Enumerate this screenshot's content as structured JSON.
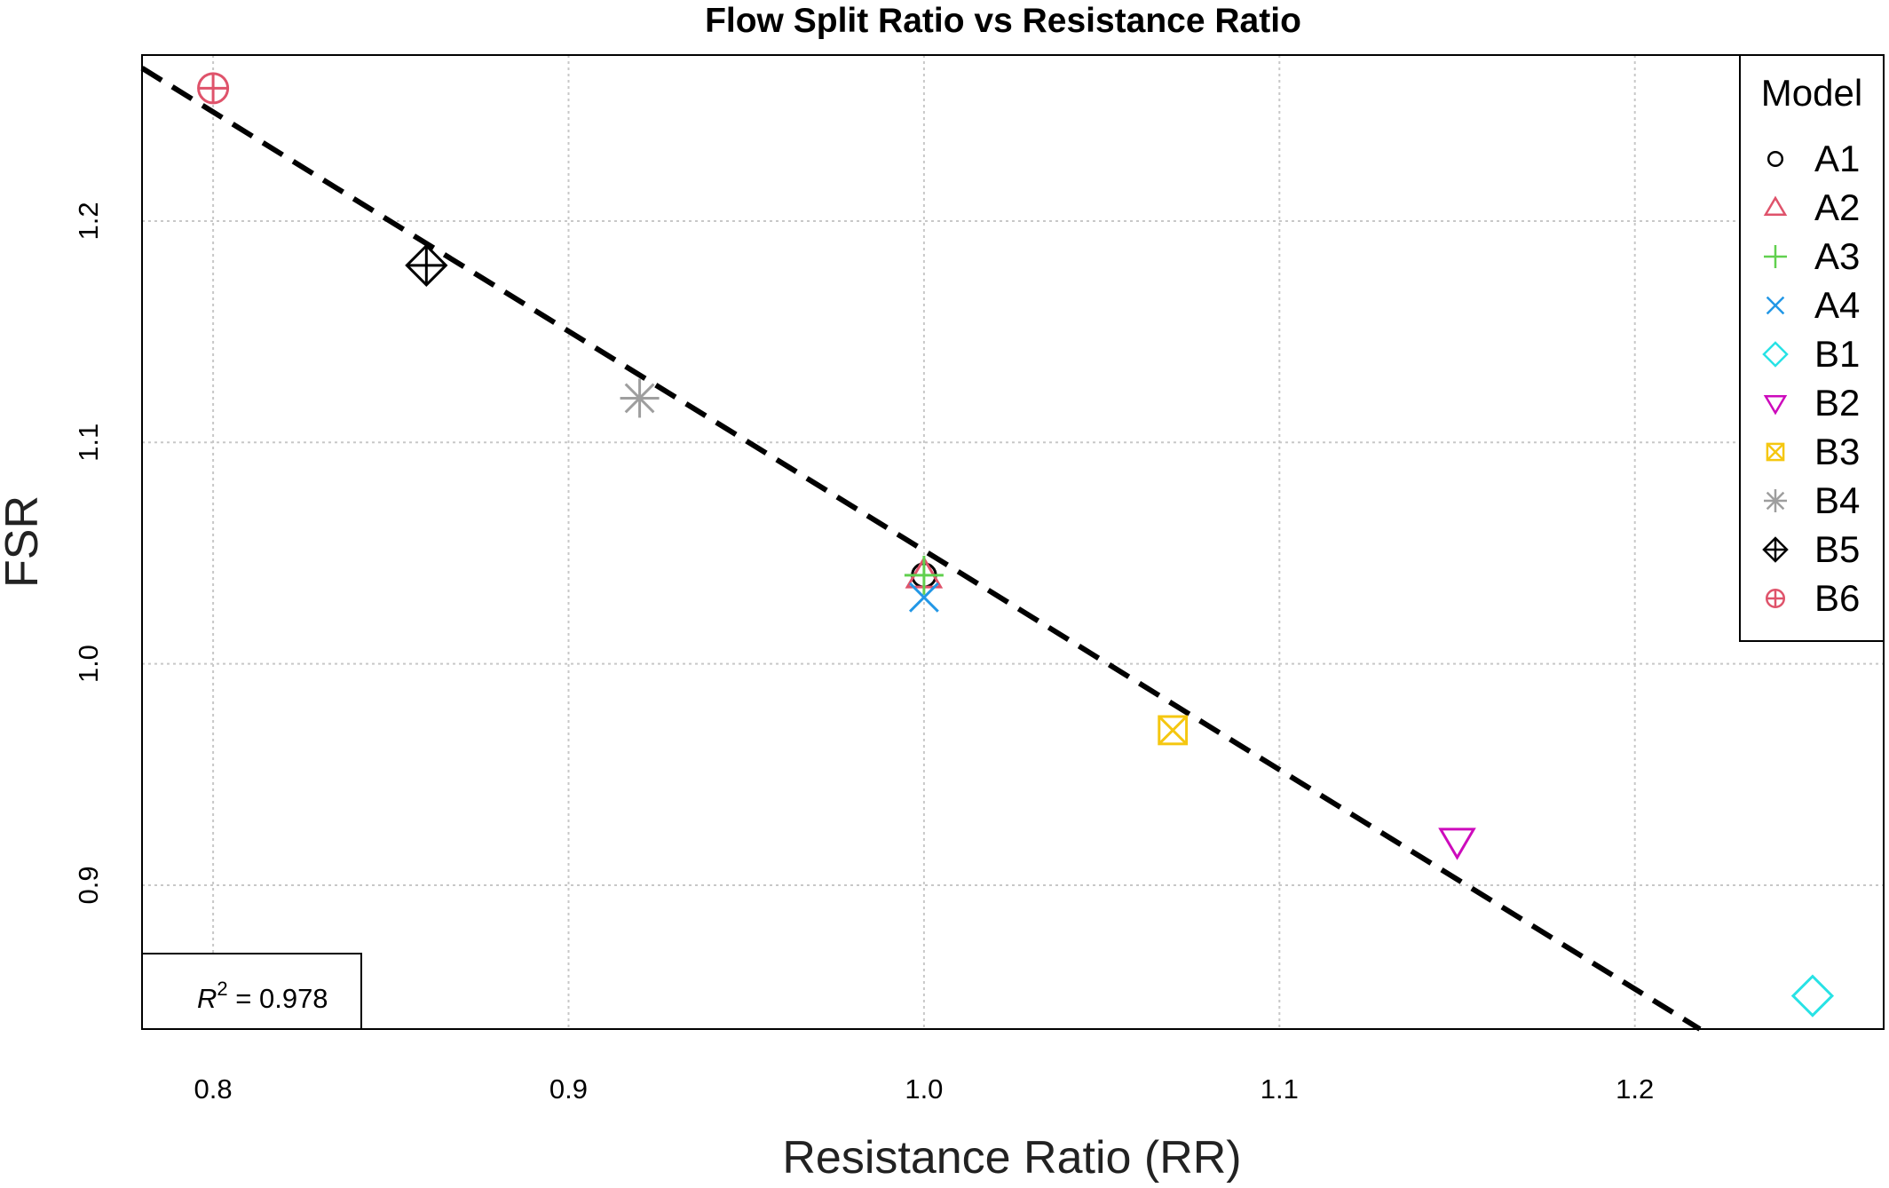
{
  "chart_data": {
    "type": "scatter",
    "title": "Flow Split Ratio vs Resistance Ratio",
    "xlabel": "Resistance Ratio (RR)",
    "ylabel": "FSR",
    "xlim": [
      0.78,
      1.27
    ],
    "ylim": [
      0.835,
      1.275
    ],
    "x_ticks": [
      "0.8",
      "0.9",
      "1.0",
      "1.1",
      "1.2"
    ],
    "y_ticks": [
      "0.9",
      "1.0",
      "1.1",
      "1.2"
    ],
    "x_tick_values": [
      0.8,
      0.9,
      1.0,
      1.1,
      1.2
    ],
    "y_tick_values": [
      0.9,
      1.0,
      1.1,
      1.2
    ],
    "grid": true,
    "legend": {
      "title": "Model",
      "position": "top-right"
    },
    "series": [
      {
        "name": "A1",
        "marker": "circle",
        "color": "#000000",
        "x": 1.0,
        "y": 1.04
      },
      {
        "name": "A2",
        "marker": "triangle-up",
        "color": "#DF536B",
        "x": 1.0,
        "y": 1.04
      },
      {
        "name": "A3",
        "marker": "plus",
        "color": "#61D04F",
        "x": 1.0,
        "y": 1.04
      },
      {
        "name": "A4",
        "marker": "cross",
        "color": "#2297E6",
        "x": 1.0,
        "y": 1.03
      },
      {
        "name": "B1",
        "marker": "diamond",
        "color": "#28E2E5",
        "x": 1.25,
        "y": 0.85
      },
      {
        "name": "B2",
        "marker": "triangle-down",
        "color": "#CD0BBC",
        "x": 1.15,
        "y": 0.92
      },
      {
        "name": "B3",
        "marker": "square-cross",
        "color": "#F5C710",
        "x": 1.07,
        "y": 0.97
      },
      {
        "name": "B4",
        "marker": "asterisk",
        "color": "#9E9E9E",
        "x": 0.92,
        "y": 1.12
      },
      {
        "name": "B5",
        "marker": "diamond-plus",
        "color": "#000000",
        "x": 0.86,
        "y": 1.18
      },
      {
        "name": "B6",
        "marker": "circle-plus",
        "color": "#DF536B",
        "x": 0.8,
        "y": 1.26
      }
    ],
    "regression_line": {
      "style": "dashed",
      "color": "#000000",
      "intercept": 2.0416,
      "slope": -0.9904
    },
    "annotation": {
      "base": "R",
      "superscript": "2",
      "text": " = 0.978"
    }
  }
}
